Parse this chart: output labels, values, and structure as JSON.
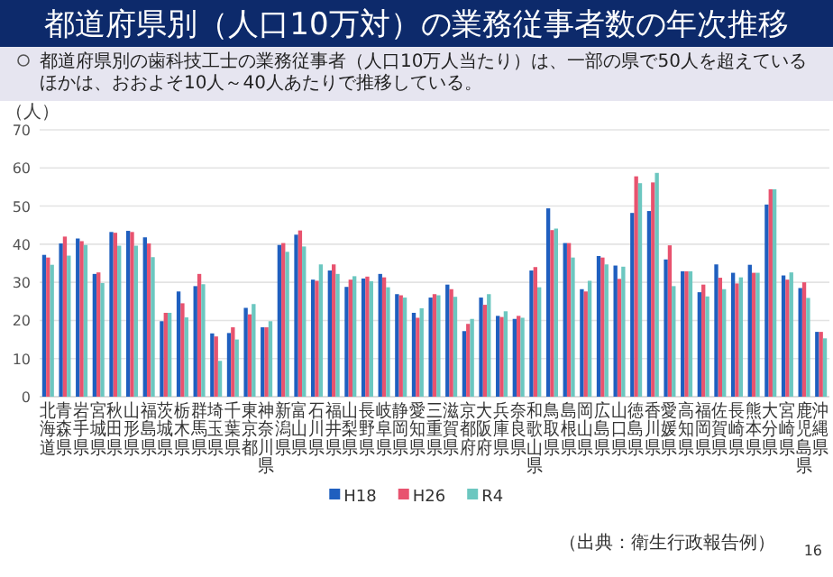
{
  "chart_data": {
    "type": "bar",
    "title": "都道府県別（人口10万対）の業務従事者数の年次推移",
    "subtitle": "都道府県別の歯科技工士の業務従事者（人口10万人当たり）は、一部の県で50人を超えているほかは、おおよそ10人～40人あたりで推移している。",
    "ylabel": "（人）",
    "categories": [
      "北海道",
      "青森県",
      "岩手県",
      "宮城県",
      "秋田県",
      "山形県",
      "福島県",
      "茨城県",
      "栃木県",
      "群馬県",
      "埼玉県",
      "千葉県",
      "東京都",
      "神奈川県",
      "新潟県",
      "富山県",
      "石川県",
      "福井県",
      "山梨県",
      "長野県",
      "岐阜県",
      "静岡県",
      "愛知県",
      "三重県",
      "滋賀県",
      "京都府",
      "大阪府",
      "兵庫県",
      "奈良県",
      "和歌山県",
      "鳥取県",
      "島根県",
      "岡山県",
      "広島県",
      "山口県",
      "徳島県",
      "香川県",
      "愛媛県",
      "高知県",
      "福岡県",
      "佐賀県",
      "長崎県",
      "熊本県",
      "大分県",
      "宮崎県",
      "鹿児島県",
      "沖縄県"
    ],
    "series": [
      {
        "name": "H18",
        "color": "#1f5fbf",
        "values": [
          37.2,
          40.2,
          41.5,
          32.2,
          43.2,
          43.5,
          41.8,
          19.8,
          27.6,
          29,
          16.6,
          16.7,
          23.3,
          18.2,
          39.8,
          42.5,
          30.7,
          33.1,
          28.8,
          31,
          32.2,
          26.9,
          22,
          26,
          29.4,
          17.2,
          26,
          21.2,
          20.4,
          33.1,
          49.4,
          40.3,
          28.2,
          36.9,
          34.4,
          48.2,
          48.7,
          36,
          32.9,
          27.4,
          34.7,
          32.5,
          34.6,
          50.4,
          31.8,
          28.5,
          17
        ]
      },
      {
        "name": "H26",
        "color": "#e8536f",
        "values": [
          36.5,
          42,
          40.8,
          32.6,
          43,
          43.2,
          40.2,
          22,
          24.5,
          32.2,
          15.8,
          18.2,
          21.6,
          18.2,
          40.3,
          43.6,
          30.4,
          34.7,
          30.7,
          31.5,
          31.3,
          26.6,
          20.7,
          26.9,
          28.2,
          19.1,
          24.1,
          20.9,
          21.2,
          34,
          43.7,
          40.3,
          27.6,
          36.5,
          30.9,
          57.8,
          56.2,
          39.7,
          32.9,
          29.4,
          31.2,
          29.7,
          32.5,
          54.4,
          30.7,
          30,
          17
        ]
      },
      {
        "name": "R4",
        "color": "#6cc7c0",
        "values": [
          34.6,
          37,
          39.8,
          29.8,
          39.6,
          39.6,
          36.6,
          22,
          20.8,
          29.5,
          9.4,
          15,
          24.3,
          19.8,
          38,
          39.4,
          34.7,
          32.2,
          31.6,
          30.3,
          28.7,
          26,
          23.2,
          26.6,
          26.2,
          20.4,
          26.9,
          22.4,
          20.7,
          28.7,
          44.1,
          36.5,
          30.4,
          34.7,
          34.1,
          56,
          58.7,
          29,
          32.9,
          26.3,
          28.2,
          31.3,
          32.5,
          54.4,
          32.6,
          25.9,
          15.3
        ]
      }
    ],
    "ylim": [
      0,
      70
    ],
    "yticks": [
      0,
      10,
      20,
      30,
      40,
      50,
      60,
      70
    ],
    "grid": "y",
    "legend": "bottom",
    "annotations": [
      "（出典：衛生行政報告例）",
      "16"
    ]
  }
}
